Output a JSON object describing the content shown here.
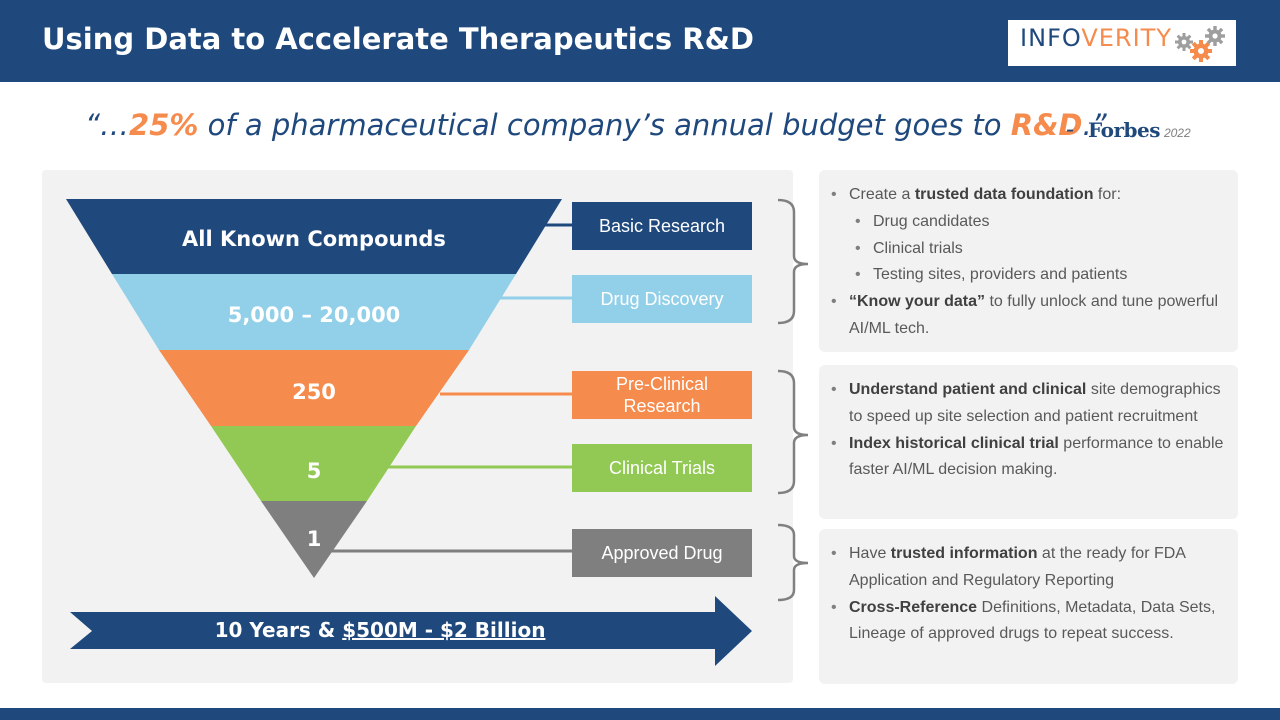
{
  "header": {
    "title": "Using Data to Accelerate Therapeutics R&D",
    "logo": {
      "part1": "INFO",
      "part2": "VERITY",
      "icon": "gears-icon"
    }
  },
  "quote": {
    "open": "“…",
    "pct": "25%",
    "middle": " of a pharmaceutical company’s annual budget goes to ",
    "rd": "R&D",
    "close": ".”",
    "dash": "-",
    "source": "Forbes",
    "year": "2022"
  },
  "funnel": {
    "levels": [
      "All Known Compounds",
      "5,000 – 20,000",
      "250",
      "5",
      "1"
    ],
    "colors": [
      "#1f497d",
      "#92d0e9",
      "#f58b4c",
      "#92c955",
      "#7f7f7f"
    ]
  },
  "stages": [
    {
      "label": "Basic Research",
      "color": "#1f497d"
    },
    {
      "label": "Drug Discovery",
      "color": "#92d0e9"
    },
    {
      "label": "Pre-Clinical Research",
      "color": "#f58b4c"
    },
    {
      "label": "Clinical Trials",
      "color": "#92c955"
    },
    {
      "label": "Approved Drug",
      "color": "#7f7f7f"
    }
  ],
  "timeline": {
    "prefix": "10 Years & ",
    "cost": "$500M - $2 Billion"
  },
  "info": {
    "box1": {
      "b1_pre": "Create a ",
      "b1_bold": "trusted data foundation",
      "b1_post": " for:",
      "subs": [
        "Drug candidates",
        "Clinical trials",
        "Testing sites, providers and patients"
      ],
      "b2_bold": "“Know your data”",
      "b2_post": " to fully unlock and tune powerful AI/ML tech."
    },
    "box2": {
      "b1_bold": "Understand patient and clinical",
      "b1_post": " site demographics to speed up site selection and patient recruitment",
      "b2_bold": "Index historical clinical trial",
      "b2_post": " performance to enable faster AI/ML decision making."
    },
    "box3": {
      "b1_pre": "Have ",
      "b1_bold": "trusted information",
      "b1_post": " at the ready for FDA Application and Regulatory Reporting",
      "b2_bold": "Cross-Reference",
      "b2_post": " Definitions, Metadata, Data Sets, Lineage of approved drugs to repeat success."
    }
  }
}
